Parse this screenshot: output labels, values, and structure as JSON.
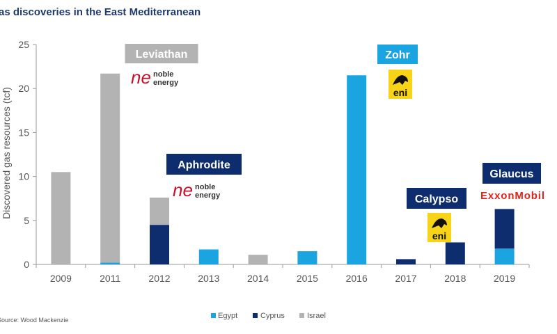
{
  "colors": {
    "egypt": "#1ba5e0",
    "cyprus": "#0d2d6e",
    "israel": "#b3b3b3",
    "title": "#1f3a6d",
    "navy_box": "#0d2d6e",
    "cyan_box": "#1ba5e0",
    "gray_box": "#b3b3b3",
    "noble_red": "#c8102e",
    "exxon_red": "#e2231a",
    "eni_yellow": "#f7d417"
  },
  "chart_data": {
    "type": "bar",
    "stacked": true,
    "title": "as discoveries in the East Mediterranean",
    "ylabel": "Discovered gas resources (tcf)",
    "xlabel": "",
    "ylim": [
      0,
      25
    ],
    "yticks": [
      0,
      5,
      10,
      15,
      20,
      25
    ],
    "grid": false,
    "legend_position": "bottom-center",
    "categories": [
      "2009",
      "2011",
      "2012",
      "2013",
      "2014",
      "2015",
      "2016",
      "2017",
      "2018",
      "2019"
    ],
    "series": [
      {
        "name": "Egypt",
        "values": [
          0,
          0.2,
          0,
          1.7,
          0,
          1.5,
          21.5,
          0,
          0,
          1.8
        ]
      },
      {
        "name": "Cyprus",
        "values": [
          0,
          0,
          4.5,
          0,
          0,
          0,
          0,
          0.6,
          2.5,
          4.5
        ]
      },
      {
        "name": "Israel",
        "values": [
          10.5,
          21.5,
          3.1,
          0,
          1.1,
          0,
          0,
          0,
          0,
          0
        ]
      }
    ],
    "annotations": [
      {
        "label": "Leviathan",
        "category": "2011",
        "style": "gray",
        "logo": "noble-energy"
      },
      {
        "label": "Aphrodite",
        "category": "2012",
        "style": "navy",
        "logo": "noble-energy"
      },
      {
        "label": "Zohr",
        "category": "2016",
        "style": "cyan",
        "logo": "eni"
      },
      {
        "label": "Calypso",
        "category": "2017",
        "style": "navy",
        "logo": "eni"
      },
      {
        "label": "Glaucus",
        "category": "2019",
        "style": "navy",
        "logo": "exxonmobil"
      }
    ],
    "source": "Source: Wood Mackenzie"
  },
  "logos": {
    "noble_line1": "noble",
    "noble_line2": "energy",
    "eni_text": "eni",
    "exxon_text": "ExxonMobil"
  }
}
